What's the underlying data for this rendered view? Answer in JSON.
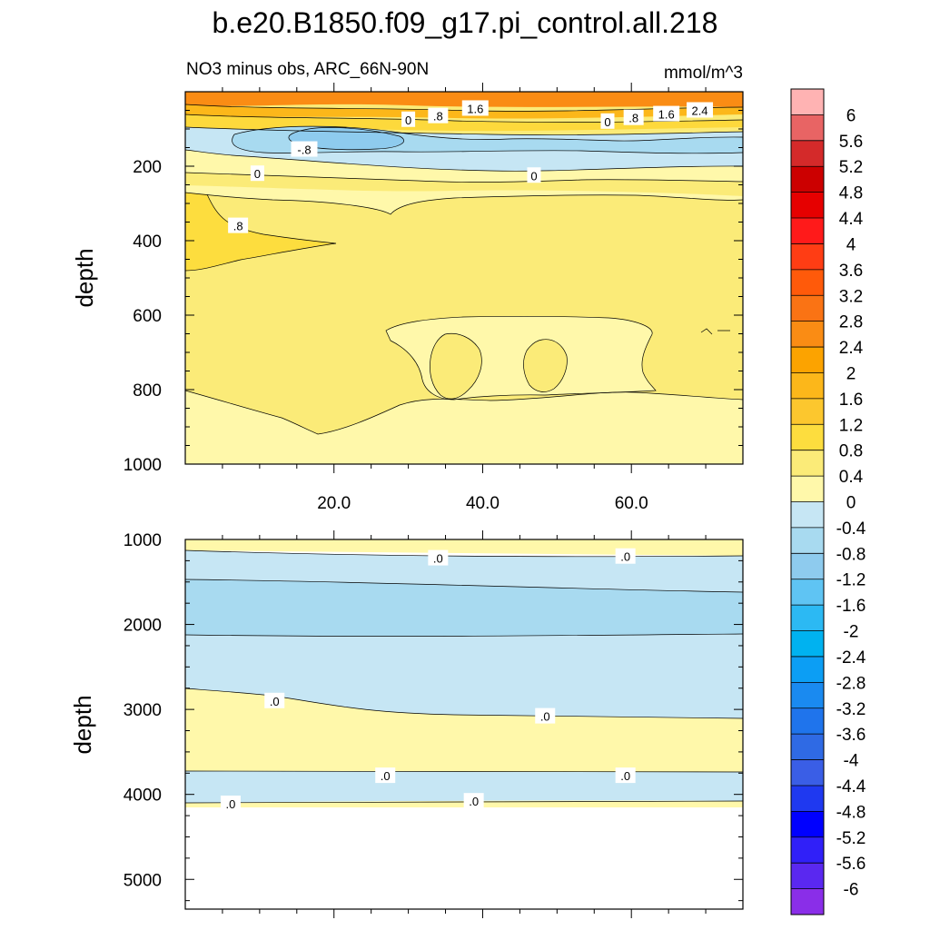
{
  "chart_data": {
    "type": "contour",
    "title": "b.e20.B1850.f09_g17.pi_control.all.218",
    "subtitle_left": "NO3 minus obs, ARC_66N-90N",
    "units": "mmol/m^3",
    "colorbar": {
      "levels": [
        "6",
        "5.6",
        "5.2",
        "4.8",
        "4.4",
        "4",
        "3.6",
        "3.2",
        "2.8",
        "2.4",
        "2",
        "1.6",
        "1.2",
        "0.8",
        "0.4",
        "0",
        "-0.4",
        "-0.8",
        "-1.2",
        "-1.6",
        "-2",
        "-2.4",
        "-2.8",
        "-3.2",
        "-3.6",
        "-4",
        "-4.4",
        "-4.8",
        "-5.2",
        "-5.6",
        "-6"
      ],
      "colors": [
        "#ffb3b3",
        "#e86464",
        "#d42a2a",
        "#cc0000",
        "#e60000",
        "#ff1a1a",
        "#ff3d14",
        "#ff5a0a",
        "#fa7314",
        "#fa8c14",
        "#fca300",
        "#fcb71a",
        "#fcc72e",
        "#fddd3e",
        "#fbeb78",
        "#fff8aa",
        "#c6e6f4",
        "#a8daf0",
        "#8ecbee",
        "#5fc4f3",
        "#2cb9f3",
        "#00b2f0",
        "#0c9ef4",
        "#1a8af0",
        "#1f74ec",
        "#2f6ae4",
        "#3a5ee6",
        "#1f39f0",
        "#0000ff",
        "#3020f8",
        "#5a28f0",
        "#8a2ee8"
      ]
    },
    "panels": [
      {
        "name": "upper",
        "ylabel": "depth",
        "ylim": [
          0,
          1000
        ],
        "y_ticks": [
          "200",
          "400",
          "600",
          "800",
          "1000"
        ],
        "y_tick_values": [
          200,
          400,
          600,
          800,
          1000
        ],
        "xlim": [
          0,
          75
        ],
        "x_ticks": [
          "20.0",
          "40.0",
          "60.0"
        ],
        "x_tick_values": [
          20,
          40,
          60
        ],
        "contour_labels": [
          {
            "text": "0",
            "x": 30.0,
            "y": 75
          },
          {
            "text": ".8",
            "x": 34.0,
            "y": 65
          },
          {
            "text": "1.6",
            "x": 39.0,
            "y": 45
          },
          {
            "text": "0",
            "x": 56.8,
            "y": 80
          },
          {
            "text": ".8",
            "x": 60.3,
            "y": 70
          },
          {
            "text": "1.6",
            "x": 64.7,
            "y": 60
          },
          {
            "text": "2.4",
            "x": 69.2,
            "y": 50
          },
          {
            "text": "-.8",
            "x": 16.0,
            "y": 155
          },
          {
            "text": "0",
            "x": 9.7,
            "y": 220
          },
          {
            "text": "0",
            "x": 46.9,
            "y": 225
          },
          {
            "text": ".8",
            "x": 7.1,
            "y": 360
          }
        ]
      },
      {
        "name": "lower",
        "ylabel": "depth",
        "ylim": [
          1000,
          5350
        ],
        "y_ticks": [
          "1000",
          "2000",
          "3000",
          "4000",
          "5000"
        ],
        "y_tick_values": [
          1000,
          2000,
          3000,
          4000,
          5000
        ],
        "xlim": [
          0,
          75
        ],
        "contour_labels": [
          {
            "text": ".0",
            "x": 34.0,
            "y": 1220
          },
          {
            "text": ".0",
            "x": 59.2,
            "y": 1200
          },
          {
            "text": ".0",
            "x": 12.0,
            "y": 2900
          },
          {
            "text": ".0",
            "x": 48.4,
            "y": 3080
          },
          {
            "text": ".0",
            "x": 26.9,
            "y": 3780
          },
          {
            "text": ".0",
            "x": 59.2,
            "y": 3780
          },
          {
            "text": ".0",
            "x": 6.1,
            "y": 4110
          },
          {
            "text": ".0",
            "x": 38.8,
            "y": 4080
          }
        ]
      }
    ]
  }
}
